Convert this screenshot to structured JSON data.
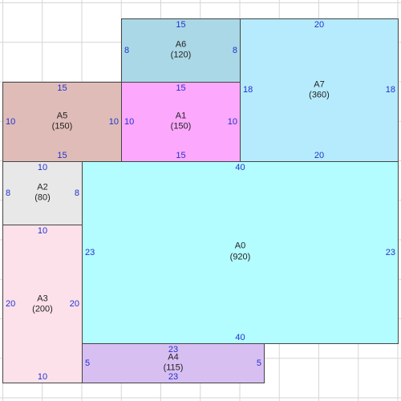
{
  "rooms": {
    "A0": {
      "name": "A0",
      "area": "(920)",
      "top": "40",
      "bottom": "40",
      "left": "23",
      "right": "23",
      "color": "#b3fcff"
    },
    "A1": {
      "name": "A1",
      "area": "(150)",
      "top": "15",
      "bottom": "15",
      "left": "10",
      "right": "10",
      "color": "#fca8fc"
    },
    "A2": {
      "name": "A2",
      "area": "(80)",
      "top": "10",
      "left": "8",
      "right": "8",
      "color": "#e8e8e8"
    },
    "A3": {
      "name": "A3",
      "area": "(200)",
      "top": "10",
      "bottom": "10",
      "left": "20",
      "right": "20",
      "color": "#fde1ea"
    },
    "A4": {
      "name": "A4",
      "area": "(115)",
      "top": "23",
      "bottom": "23",
      "left": "5",
      "right": "5",
      "color": "#d8bff2"
    },
    "A5": {
      "name": "A5",
      "area": "(150)",
      "top": "15",
      "bottom": "15",
      "left": "10",
      "right": "10",
      "color": "#dfbcb8"
    },
    "A6": {
      "name": "A6",
      "area": "(120)",
      "top": "15",
      "left": "8",
      "right": "8",
      "color": "#abd8e7"
    },
    "A7": {
      "name": "A7",
      "area": "(360)",
      "top": "20",
      "bottom": "20",
      "left": "18",
      "right": "18",
      "color": "#b5ebfc"
    }
  }
}
